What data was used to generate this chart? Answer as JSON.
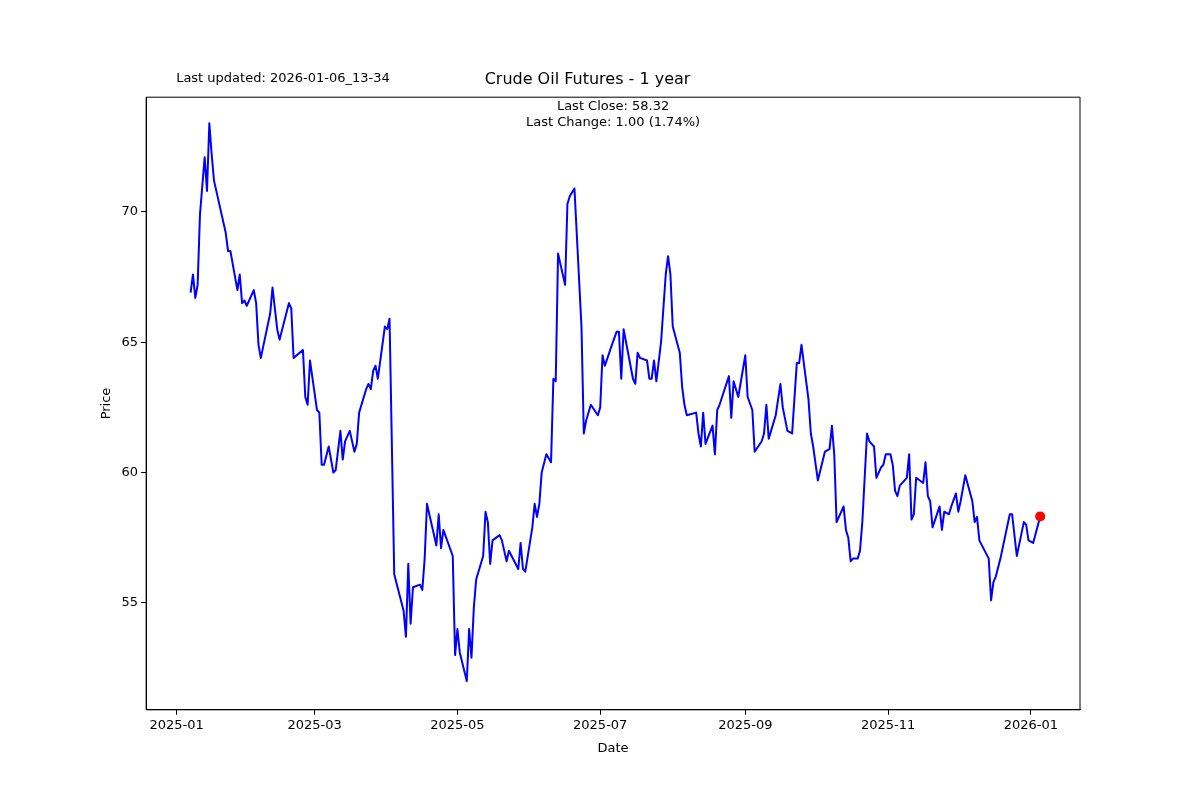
{
  "chart_data": {
    "type": "line",
    "title": "Crude Oil Futures - 1 year",
    "xlabel": "Date",
    "ylabel": "Price",
    "annotations": [
      "Last updated: 2026-01-06_13-34",
      "Last Close: 58.32",
      "Last Change: 1.00 (1.74%)"
    ],
    "xlim": [
      "2024-12-19",
      "2026-01-22"
    ],
    "xticks": [
      "2025-01",
      "2025-03",
      "2025-05",
      "2025-07",
      "2025-09",
      "2025-11",
      "2026-01"
    ],
    "ylim": [
      50.9,
      74.4
    ],
    "yticks": [
      55,
      60,
      65,
      70
    ],
    "grid": false,
    "legend": false,
    "series": [
      {
        "type": "line",
        "color": "#0000ff",
        "marker": "none",
        "line_style": "solid",
        "x": [
          "2025-01-07",
          "2025-01-08",
          "2025-01-09",
          "2025-01-10",
          "2025-01-11",
          "2025-01-13",
          "2025-01-14",
          "2025-01-15",
          "2025-01-16",
          "2025-01-17",
          "2025-01-22",
          "2025-01-23",
          "2025-01-24",
          "2025-01-27",
          "2025-01-28",
          "2025-01-29",
          "2025-01-30",
          "2025-01-31",
          "2025-02-03",
          "2025-02-04",
          "2025-02-05",
          "2025-02-06",
          "2025-02-10",
          "2025-02-11",
          "2025-02-12",
          "2025-02-13",
          "2025-02-14",
          "2025-02-18",
          "2025-02-19",
          "2025-02-20",
          "2025-02-24",
          "2025-02-25",
          "2025-02-26",
          "2025-02-27",
          "2025-03-02",
          "2025-03-03",
          "2025-03-04",
          "2025-03-05",
          "2025-03-07",
          "2025-03-09",
          "2025-03-10",
          "2025-03-12",
          "2025-03-13",
          "2025-03-14",
          "2025-03-16",
          "2025-03-18",
          "2025-03-19",
          "2025-03-20",
          "2025-03-23",
          "2025-03-24",
          "2025-03-25",
          "2025-03-26",
          "2025-03-27",
          "2025-03-28",
          "2025-03-31",
          "2025-04-01",
          "2025-04-02",
          "2025-04-04",
          "2025-04-08",
          "2025-04-09",
          "2025-04-10",
          "2025-04-11",
          "2025-04-12",
          "2025-04-15",
          "2025-04-16",
          "2025-04-17",
          "2025-04-18",
          "2025-04-22",
          "2025-04-23",
          "2025-04-24",
          "2025-04-25",
          "2025-04-29",
          "2025-04-30",
          "2025-05-01",
          "2025-05-02",
          "2025-05-05",
          "2025-05-06",
          "2025-05-07",
          "2025-05-08",
          "2025-05-09",
          "2025-05-12",
          "2025-05-13",
          "2025-05-14",
          "2025-05-15",
          "2025-05-16",
          "2025-05-19",
          "2025-05-20",
          "2025-05-22",
          "2025-05-23",
          "2025-05-27",
          "2025-05-28",
          "2025-05-29",
          "2025-05-30",
          "2025-06-02",
          "2025-06-03",
          "2025-06-04",
          "2025-06-05",
          "2025-06-06",
          "2025-06-08",
          "2025-06-10",
          "2025-06-11",
          "2025-06-12",
          "2025-06-13",
          "2025-06-16",
          "2025-06-17",
          "2025-06-18",
          "2025-06-20",
          "2025-06-23",
          "2025-06-24",
          "2025-06-25",
          "2025-06-27",
          "2025-06-30",
          "2025-07-01",
          "2025-07-02",
          "2025-07-03",
          "2025-07-06",
          "2025-07-08",
          "2025-07-09",
          "2025-07-10",
          "2025-07-11",
          "2025-07-15",
          "2025-07-16",
          "2025-07-17",
          "2025-07-18",
          "2025-07-21",
          "2025-07-22",
          "2025-07-23",
          "2025-07-24",
          "2025-07-25",
          "2025-07-27",
          "2025-07-29",
          "2025-07-30",
          "2025-07-31",
          "2025-08-01",
          "2025-08-04",
          "2025-08-05",
          "2025-08-06",
          "2025-08-07",
          "2025-08-11",
          "2025-08-12",
          "2025-08-13",
          "2025-08-14",
          "2025-08-15",
          "2025-08-18",
          "2025-08-19",
          "2025-08-20",
          "2025-08-21",
          "2025-08-25",
          "2025-08-26",
          "2025-08-27",
          "2025-08-29",
          "2025-09-01",
          "2025-09-02",
          "2025-09-04",
          "2025-09-05",
          "2025-09-08",
          "2025-09-09",
          "2025-09-10",
          "2025-09-11",
          "2025-09-12",
          "2025-09-14",
          "2025-09-16",
          "2025-09-17",
          "2025-09-19",
          "2025-09-21",
          "2025-09-23",
          "2025-09-24",
          "2025-09-25",
          "2025-09-28",
          "2025-09-29",
          "2025-09-30",
          "2025-10-02",
          "2025-10-05",
          "2025-10-07",
          "2025-10-08",
          "2025-10-09",
          "2025-10-10",
          "2025-10-13",
          "2025-10-14",
          "2025-10-15",
          "2025-10-16",
          "2025-10-17",
          "2025-10-19",
          "2025-10-20",
          "2025-10-21",
          "2025-10-23",
          "2025-10-24",
          "2025-10-26",
          "2025-10-27",
          "2025-10-29",
          "2025-10-30",
          "2025-10-31",
          "2025-11-02",
          "2025-11-03",
          "2025-11-04",
          "2025-11-05",
          "2025-11-06",
          "2025-11-09",
          "2025-11-10",
          "2025-11-11",
          "2025-11-12",
          "2025-11-13",
          "2025-11-16",
          "2025-11-17",
          "2025-11-18",
          "2025-11-19",
          "2025-11-20",
          "2025-11-23",
          "2025-11-24",
          "2025-11-25",
          "2025-11-27",
          "2025-11-28",
          "2025-11-30",
          "2025-12-01",
          "2025-12-02",
          "2025-12-04",
          "2025-12-07",
          "2025-12-08",
          "2025-12-09",
          "2025-12-10",
          "2025-12-14",
          "2025-12-15",
          "2025-12-16",
          "2025-12-17",
          "2025-12-19",
          "2025-12-23",
          "2025-12-24",
          "2025-12-26",
          "2025-12-29",
          "2025-12-30",
          "2025-12-31",
          "2026-01-02",
          "2026-01-05"
        ],
        "values": [
          66.9,
          67.6,
          66.7,
          67.2,
          69.9,
          72.1,
          70.8,
          73.4,
          72.2,
          71.2,
          69.2,
          68.5,
          68.5,
          67.0,
          67.6,
          66.5,
          66.6,
          66.4,
          67.0,
          66.5,
          64.9,
          64.4,
          66.1,
          67.1,
          66.3,
          65.5,
          65.1,
          66.5,
          66.3,
          64.4,
          64.7,
          62.9,
          62.6,
          64.3,
          62.4,
          62.3,
          60.3,
          60.3,
          61.0,
          60.0,
          60.1,
          61.6,
          60.5,
          61.2,
          61.6,
          60.8,
          61.1,
          62.3,
          63.2,
          63.4,
          63.2,
          63.9,
          64.1,
          63.6,
          65.6,
          65.5,
          65.9,
          56.1,
          54.7,
          53.7,
          56.5,
          54.2,
          55.6,
          55.7,
          55.5,
          56.7,
          58.8,
          57.2,
          58.4,
          57.1,
          57.8,
          56.8,
          53.0,
          54.0,
          53.1,
          52.0,
          54.0,
          52.9,
          54.8,
          55.9,
          56.8,
          58.5,
          58.1,
          56.5,
          57.4,
          57.6,
          57.4,
          56.6,
          57.0,
          56.3,
          57.3,
          56.3,
          56.2,
          57.9,
          58.8,
          58.3,
          58.8,
          60.0,
          60.7,
          60.4,
          63.6,
          63.5,
          68.4,
          67.2,
          70.3,
          70.6,
          70.9,
          65.6,
          61.5,
          62.0,
          62.6,
          62.2,
          62.5,
          64.5,
          64.1,
          64.9,
          65.4,
          65.4,
          63.6,
          65.5,
          63.6,
          63.4,
          64.6,
          64.4,
          64.3,
          63.6,
          63.6,
          64.3,
          63.5,
          65.0,
          67.6,
          68.3,
          67.6,
          65.6,
          64.6,
          63.3,
          62.6,
          62.2,
          62.3,
          61.5,
          61.0,
          62.3,
          61.1,
          61.8,
          60.7,
          62.4,
          62.6,
          63.7,
          62.1,
          63.5,
          62.9,
          64.5,
          62.9,
          62.4,
          60.8,
          61.2,
          61.5,
          62.6,
          61.3,
          61.6,
          62.2,
          63.4,
          62.5,
          61.6,
          61.5,
          64.2,
          64.2,
          64.9,
          62.8,
          61.5,
          61.0,
          59.7,
          60.8,
          60.9,
          61.8,
          60.7,
          58.1,
          58.7,
          57.8,
          57.5,
          56.6,
          56.7,
          56.7,
          57.0,
          58.1,
          61.5,
          61.2,
          61.0,
          59.8,
          60.2,
          60.3,
          60.7,
          60.7,
          60.3,
          59.3,
          59.1,
          59.5,
          59.8,
          60.7,
          58.2,
          58.4,
          59.8,
          59.6,
          60.4,
          59.1,
          58.9,
          57.9,
          58.7,
          57.8,
          58.5,
          58.4,
          58.7,
          59.2,
          58.5,
          58.9,
          59.9,
          58.9,
          58.1,
          58.3,
          57.4,
          56.7,
          55.1,
          55.8,
          56.0,
          56.7,
          58.4,
          58.4,
          56.8,
          58.1,
          58.0,
          57.4,
          57.3,
          58.32
        ]
      },
      {
        "type": "scatter",
        "color": "#ff0000",
        "marker": "circle",
        "x": [
          "2026-01-05"
        ],
        "values": [
          58.32
        ]
      }
    ]
  }
}
